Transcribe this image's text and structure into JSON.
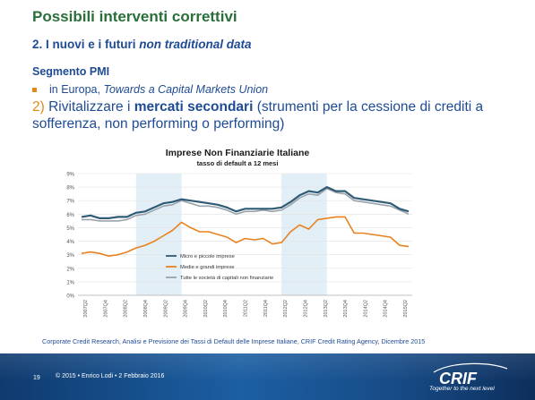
{
  "header": {
    "title": "Possibili interventi correttivi",
    "subtitle_prefix": "2. I nuovi e i futuri ",
    "subtitle_italic": "non traditional data"
  },
  "content": {
    "section": "Segmento PMI",
    "bullet_prefix": "in Europa, ",
    "bullet_italic": "Towards a Capital Markets Union",
    "item_number": "2)",
    "item_text_before": "Rivitalizzare i ",
    "item_text_bold": "mercati secondari",
    "item_text_after": " (strumenti per la cessione di crediti a sofferenza, non performing o performing)"
  },
  "chart_data": {
    "type": "line",
    "title": "Imprese Non Finanziarie Italiane",
    "subtitle": "tasso di default a 12 mesi",
    "ylim": [
      0,
      9
    ],
    "y_ticks": [
      "0%",
      "1%",
      "2%",
      "3%",
      "4%",
      "5%",
      "6%",
      "7%",
      "8%",
      "9%"
    ],
    "x_labels": [
      "2007Q2",
      "2007Q4",
      "2008Q2",
      "2008Q4",
      "2009Q2",
      "2009Q4",
      "2010Q2",
      "2010Q4",
      "2011Q2",
      "2011Q4",
      "2012Q2",
      "2012Q4",
      "2013Q2",
      "2013Q4",
      "2014Q2",
      "2014Q4",
      "2015Q2"
    ],
    "shaded_ranges": [
      [
        6,
        11
      ],
      [
        22,
        27
      ]
    ],
    "legend_position": "bottom-left",
    "series": [
      {
        "name": "Micro e piccole imprese",
        "color": "#2f5b76",
        "width": 2.2,
        "values": [
          5.8,
          5.9,
          5.7,
          5.7,
          5.8,
          5.8,
          6.1,
          6.2,
          6.5,
          6.8,
          6.9,
          7.1,
          7.0,
          6.9,
          6.8,
          6.7,
          6.5,
          6.2,
          6.4,
          6.4,
          6.4,
          6.4,
          6.5,
          6.9,
          7.4,
          7.7,
          7.6,
          8.0,
          7.7,
          7.7,
          7.2,
          7.1,
          7.0,
          6.9,
          6.8,
          6.4,
          6.2
        ]
      },
      {
        "name": "Medie e grandi imprese",
        "color": "#e8821f",
        "width": 1.6,
        "values": [
          3.1,
          3.2,
          3.1,
          2.9,
          3.0,
          3.2,
          3.5,
          3.7,
          4.0,
          4.4,
          4.8,
          5.4,
          5.0,
          4.7,
          4.7,
          4.5,
          4.3,
          3.9,
          4.2,
          4.1,
          4.2,
          3.8,
          3.9,
          4.7,
          5.2,
          4.9,
          5.6,
          5.7,
          5.8,
          5.8,
          4.6,
          4.6,
          4.5,
          4.4,
          4.3,
          3.7,
          3.6
        ]
      },
      {
        "name": "Tutte le società di capitali non finanziarie",
        "color": "#9aa3ab",
        "width": 1.6,
        "values": [
          5.6,
          5.6,
          5.5,
          5.5,
          5.5,
          5.6,
          5.9,
          6.0,
          6.3,
          6.6,
          6.7,
          7.0,
          6.8,
          6.6,
          6.6,
          6.5,
          6.3,
          6.0,
          6.2,
          6.2,
          6.3,
          6.2,
          6.3,
          6.7,
          7.2,
          7.5,
          7.4,
          7.9,
          7.6,
          7.5,
          7.0,
          6.9,
          6.8,
          6.7,
          6.6,
          6.3,
          6.0
        ]
      }
    ]
  },
  "source": "Corporate Credit Research, Analisi e Previsione dei Tassi di Default delle Imprese Italiane, CRIF Credit Rating Agency, Dicembre 2015",
  "footer": {
    "page_number": "19",
    "text": "© 2015 • Enrico Lodi • 2 Febbraio 2016",
    "logo_text": "CRIF",
    "tagline": "Together to the next level"
  },
  "colors": {
    "title": "#2a6f3a",
    "text": "#1e4b94",
    "accent": "#e08a1e",
    "footer_bg": "#1c5fa3",
    "shade": "#e3eff7"
  }
}
